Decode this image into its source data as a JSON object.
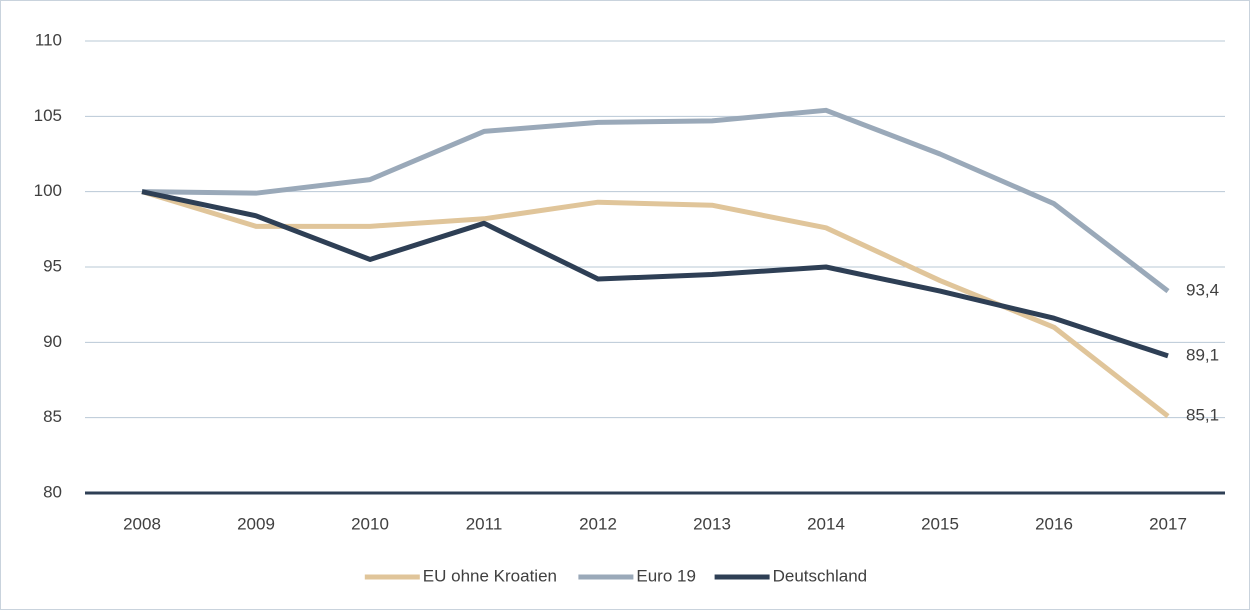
{
  "chart_data": {
    "type": "line",
    "categories": [
      "2008",
      "2009",
      "2010",
      "2011",
      "2012",
      "2013",
      "2014",
      "2015",
      "2016",
      "2017"
    ],
    "series": [
      {
        "name": "EU ohne Kroatien",
        "color": "#e0c59a",
        "values": [
          100,
          97.7,
          97.7,
          98.2,
          99.3,
          99.1,
          97.6,
          94.1,
          91.0,
          85.1
        ],
        "value_labels": [
          null,
          null,
          null,
          null,
          null,
          null,
          null,
          null,
          null,
          "85,1"
        ]
      },
      {
        "name": "Euro 19",
        "color": "#9aa9b9",
        "values": [
          100,
          99.9,
          100.8,
          104.0,
          104.6,
          104.7,
          105.4,
          102.5,
          99.2,
          93.4
        ],
        "value_labels": [
          null,
          null,
          null,
          null,
          null,
          null,
          null,
          null,
          null,
          "93,4"
        ]
      },
      {
        "name": "Deutschland",
        "color": "#2e3f55",
        "values": [
          100,
          98.4,
          95.5,
          97.9,
          94.2,
          94.5,
          95.0,
          93.4,
          91.6,
          89.1
        ],
        "value_labels": [
          null,
          null,
          null,
          null,
          null,
          null,
          null,
          null,
          null,
          "89,1"
        ]
      }
    ],
    "ylim": [
      80,
      110
    ],
    "yticks": [
      80,
      85,
      90,
      95,
      100,
      105,
      110
    ],
    "grid": true,
    "legend": "bottom"
  }
}
